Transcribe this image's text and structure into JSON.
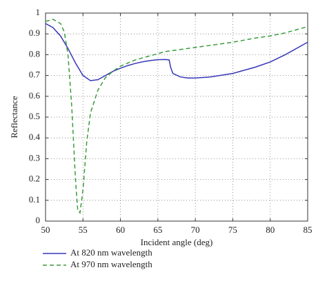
{
  "chart_data": {
    "type": "line",
    "xlabel": "Incident angle (deg)",
    "ylabel": "Reflectance",
    "xlim": [
      50,
      85
    ],
    "xticks": [
      50,
      55,
      60,
      65,
      70,
      75,
      80,
      85
    ],
    "ylim": [
      0,
      1
    ],
    "yticks": [
      0,
      0.1,
      0.2,
      0.3,
      0.4,
      0.5,
      0.6,
      0.7,
      0.8,
      0.9,
      1
    ],
    "grid": true,
    "legend": "bottom",
    "series": [
      {
        "name": "At 820 nm wavelength",
        "color": "#3535b8",
        "linestyle": "solid",
        "x": [
          50,
          51,
          52,
          53,
          54,
          55,
          56,
          57,
          58,
          59,
          60,
          61,
          62,
          63,
          64,
          65,
          66,
          66.5,
          66.7,
          67,
          68,
          69,
          70,
          72,
          75,
          78,
          80,
          82,
          85
        ],
        "values": [
          0.95,
          0.93,
          0.89,
          0.83,
          0.76,
          0.7,
          0.675,
          0.68,
          0.7,
          0.72,
          0.735,
          0.748,
          0.758,
          0.766,
          0.772,
          0.776,
          0.777,
          0.775,
          0.74,
          0.71,
          0.693,
          0.688,
          0.688,
          0.693,
          0.71,
          0.74,
          0.765,
          0.8,
          0.86
        ]
      },
      {
        "name": "At 970 nm wavelength",
        "color": "#3a9a3a",
        "linestyle": "dashed",
        "x": [
          50,
          51,
          52,
          52.5,
          53,
          53.5,
          54,
          54.3,
          54.6,
          55,
          55.5,
          56,
          57,
          58,
          59,
          60,
          62,
          64,
          66,
          68,
          70,
          72,
          75,
          78,
          80,
          82,
          85
        ],
        "values": [
          0.96,
          0.97,
          0.95,
          0.91,
          0.8,
          0.55,
          0.2,
          0.05,
          0.04,
          0.15,
          0.38,
          0.52,
          0.63,
          0.69,
          0.72,
          0.745,
          0.775,
          0.795,
          0.815,
          0.825,
          0.835,
          0.845,
          0.86,
          0.88,
          0.89,
          0.905,
          0.935
        ]
      }
    ]
  }
}
